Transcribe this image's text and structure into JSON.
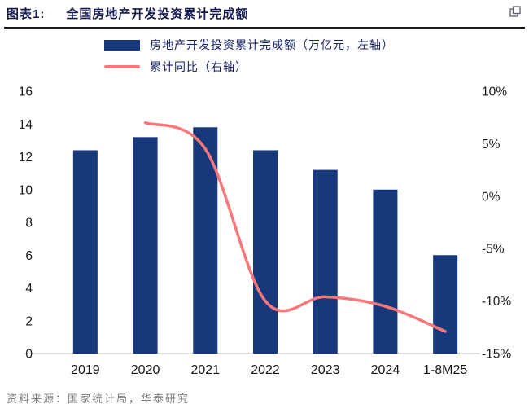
{
  "header": {
    "label": "图表1:",
    "title": "全国房地产开发投资累计完成额"
  },
  "footer": {
    "source": "资料来源：国家统计局，华泰研究"
  },
  "icons": {
    "copy_icon": "copy-icon"
  },
  "colors": {
    "bar": "#17397c",
    "line": "#f8777a",
    "title": "#13194e",
    "header_rule": "#1c1c24",
    "axis_baseline": "#bcbcbc"
  },
  "chart_data": {
    "type": "bar",
    "title": "全国房地产开发投资累计完成额",
    "legend_position": "top",
    "grid": false,
    "categories": [
      "2019",
      "2020",
      "2021",
      "2022",
      "2023",
      "2024",
      "1-8M25"
    ],
    "series": [
      {
        "name": "房地产开发投资累计完成额（万亿元，左轴）",
        "type": "bar",
        "axis": "left",
        "color": "#17397c",
        "values": [
          12.4,
          13.2,
          13.8,
          12.4,
          11.2,
          10.0,
          6.0
        ]
      },
      {
        "name": "累计同比（右轴）",
        "type": "line",
        "axis": "right",
        "color": "#f8777a",
        "values": [
          null,
          7.0,
          4.5,
          -10.0,
          -9.6,
          -10.5,
          -12.9
        ]
      }
    ],
    "left_axis": {
      "label": "万亿元",
      "min": 0,
      "max": 16,
      "tick_values": [
        16,
        14,
        12,
        10,
        8,
        6,
        4,
        2,
        0
      ],
      "tick_labels": [
        "16",
        "14",
        "12",
        "10",
        "8",
        "6",
        "4",
        "2",
        "0"
      ]
    },
    "right_axis": {
      "label": "累计同比",
      "min": -15,
      "max": 10,
      "tick_values": [
        10,
        5,
        0,
        -5,
        -10,
        -15
      ],
      "tick_labels": [
        "10%",
        "5%",
        "0%",
        "-5%",
        "-10%",
        "-15%"
      ]
    }
  }
}
